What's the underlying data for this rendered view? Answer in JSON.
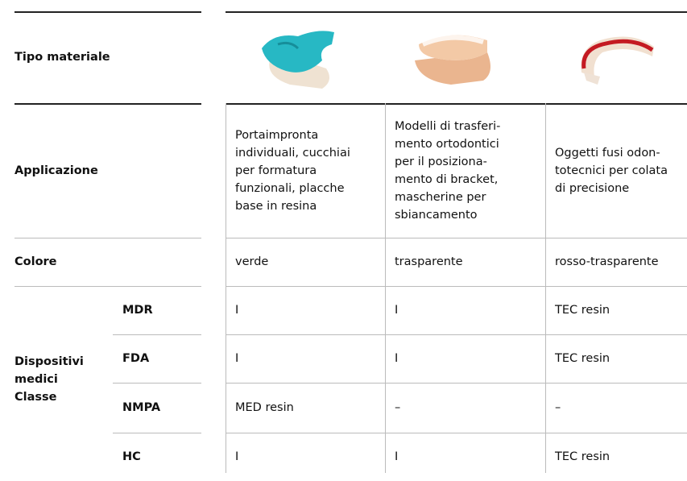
{
  "header": {
    "label": "Tipo materiale"
  },
  "rows": {
    "applicazione": {
      "label": "Applicazione",
      "cells": [
        [
          "Portaimpronta",
          "individuali, cucchiai",
          "per formatura",
          "funzionali, placche",
          "base in resina"
        ],
        [
          "Modelli di trasferi-",
          "mento ortodontici",
          "per il posiziona-",
          "mento di bracket,",
          "mascherine per",
          "sbiancamento"
        ],
        [
          "Oggetti fusi odon-",
          "totecnici per colata",
          "di precisione"
        ]
      ]
    },
    "colore": {
      "label": "Colore",
      "cells": [
        "verde",
        "trasparente",
        "rosso-trasparente"
      ]
    },
    "dispositivi": {
      "label": [
        "Dispositivi",
        "medici",
        "Classe"
      ],
      "subrows": [
        {
          "label": "MDR",
          "cells": [
            "I",
            "I",
            "TEC resin"
          ]
        },
        {
          "label": "FDA",
          "cells": [
            "I",
            "I",
            "TEC resin"
          ]
        },
        {
          "label": "NMPA",
          "cells": [
            "MED resin",
            "–",
            "–"
          ]
        },
        {
          "label": "HC",
          "cells": [
            "I",
            "I",
            "TEC resin"
          ]
        }
      ]
    }
  }
}
